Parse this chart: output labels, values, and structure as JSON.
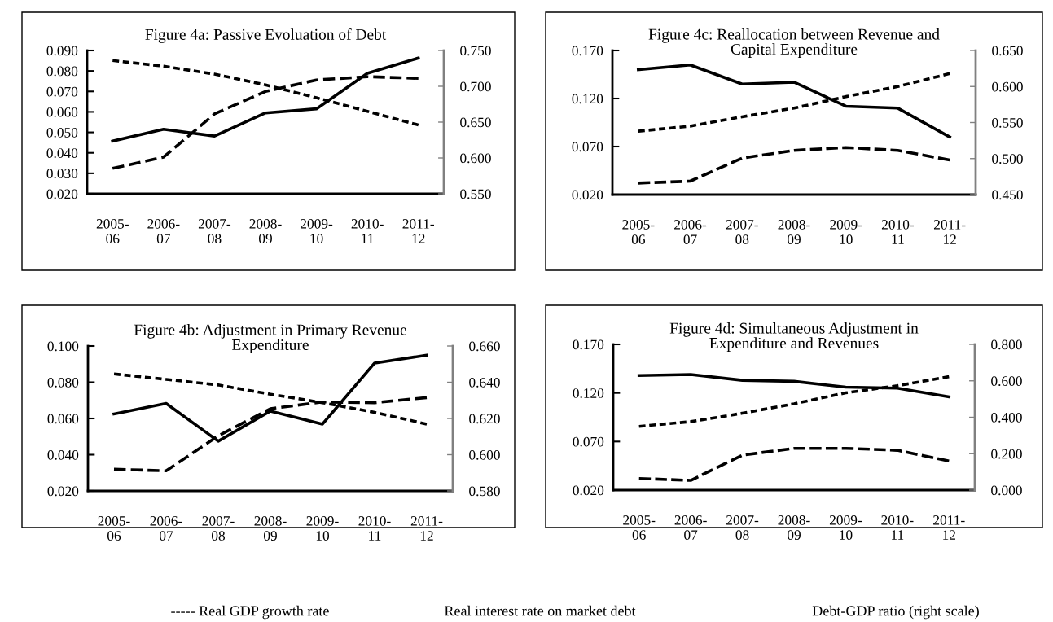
{
  "chart_data": [
    {
      "type": "line",
      "title": "Figure 4a: Passive Evoluation of Debt",
      "categories": [
        "2005-\n06",
        "2006-\n07",
        "2007-\n08",
        "2008-\n09",
        "2009-\n10",
        "2010-\n11",
        "2011-\n12"
      ],
      "series": [
        {
          "color": "#000000",
          "line_style": "solid",
          "values": [
            0.0457,
            0.0515,
            0.0482,
            0.0595,
            0.0615,
            0.0789,
            0.0863
          ]
        },
        {
          "color": "#000000",
          "line_style": "dashed",
          "values": [
            0.0324,
            0.0379,
            0.059,
            0.07,
            0.0756,
            0.0772,
            0.0764
          ]
        },
        {
          "color": "#000000",
          "line_style": "dotted",
          "axis": "y2",
          "values": [
            0.736,
            0.728,
            0.717,
            0.702,
            0.684,
            0.665,
            0.646
          ]
        }
      ],
      "ylim": [
        0.02,
        0.09
      ],
      "yticks": [
        {
          "value": 0.02,
          "label": "0.020"
        },
        {
          "value": 0.03,
          "label": "0.030"
        },
        {
          "value": 0.04,
          "label": "0.040"
        },
        {
          "value": 0.05,
          "label": "0.050"
        },
        {
          "value": 0.06,
          "label": "0.060"
        },
        {
          "value": 0.07,
          "label": "0.070"
        },
        {
          "value": 0.08,
          "label": "0.080"
        },
        {
          "value": 0.09,
          "label": "0.090"
        }
      ],
      "y2lim": [
        0.55,
        0.75
      ],
      "y2ticks": [
        {
          "value": 0.55,
          "label": "0.550"
        },
        {
          "value": 0.6,
          "label": "0.600"
        },
        {
          "value": 0.65,
          "label": "0.650"
        },
        {
          "value": 0.7,
          "label": "0.700"
        },
        {
          "value": 0.75,
          "label": "0.750"
        }
      ],
      "grid": false
    },
    {
      "type": "line",
      "title": "Figure 4c: Reallocation between Revenue and\nCapital Expenditure",
      "categories": [
        "2005-\n06",
        "2006-\n07",
        "2007-\n08",
        "2008-\n09",
        "2009-\n10",
        "2010-\n11",
        "2011-\n12"
      ],
      "series": [
        {
          "color": "#000000",
          "line_style": "solid",
          "values": [
            0.15,
            0.155,
            0.135,
            0.137,
            0.112,
            0.11,
            0.08
          ]
        },
        {
          "color": "#000000",
          "line_style": "dashed",
          "values": [
            0.032,
            0.034,
            0.058,
            0.066,
            0.069,
            0.066,
            0.056
          ]
        },
        {
          "color": "#000000",
          "line_style": "dotted",
          "axis": "y2",
          "values": [
            0.538,
            0.545,
            0.558,
            0.57,
            0.586,
            0.6,
            0.618
          ]
        }
      ],
      "ylim": [
        0.02,
        0.17
      ],
      "yticks": [
        {
          "value": 0.02,
          "label": "0.020"
        },
        {
          "value": 0.07,
          "label": "0.070"
        },
        {
          "value": 0.12,
          "label": "0.120"
        },
        {
          "value": 0.17,
          "label": "0.170"
        }
      ],
      "y2lim": [
        0.45,
        0.65
      ],
      "y2ticks": [
        {
          "value": 0.45,
          "label": "0.450"
        },
        {
          "value": 0.5,
          "label": "0.500"
        },
        {
          "value": 0.55,
          "label": "0.550"
        },
        {
          "value": 0.6,
          "label": "0.600"
        },
        {
          "value": 0.65,
          "label": "0.650"
        }
      ],
      "grid": false
    },
    {
      "type": "line",
      "title": "Figure 4b: Adjustment in Primary Revenue\nExpenditure",
      "categories": [
        "2005-\n06",
        "2006-\n07",
        "2007-\n08",
        "2008-\n09",
        "2009-\n10",
        "2010-\n11",
        "2011-\n12"
      ],
      "series": [
        {
          "color": "#000000",
          "line_style": "solid",
          "values": [
            0.0625,
            0.0683,
            0.0475,
            0.0641,
            0.0569,
            0.0906,
            0.0949
          ]
        },
        {
          "color": "#000000",
          "line_style": "dashed",
          "values": [
            0.032,
            0.0311,
            0.0504,
            0.0654,
            0.0691,
            0.0687,
            0.0715
          ]
        },
        {
          "color": "#000000",
          "line_style": "dotted",
          "axis": "y2",
          "values": [
            0.6446,
            0.6416,
            0.6385,
            0.6334,
            0.6287,
            0.6234,
            0.6169
          ]
        }
      ],
      "ylim": [
        0.02,
        0.1
      ],
      "yticks": [
        {
          "value": 0.02,
          "label": "0.020"
        },
        {
          "value": 0.04,
          "label": "0.040"
        },
        {
          "value": 0.06,
          "label": "0.060"
        },
        {
          "value": 0.08,
          "label": "0.080"
        },
        {
          "value": 0.1,
          "label": "0.100"
        }
      ],
      "y2lim": [
        0.58,
        0.66
      ],
      "y2ticks": [
        {
          "value": 0.58,
          "label": "0.580"
        },
        {
          "value": 0.6,
          "label": "0.600"
        },
        {
          "value": 0.62,
          "label": "0.620"
        },
        {
          "value": 0.64,
          "label": "0.640"
        },
        {
          "value": 0.66,
          "label": "0.660"
        }
      ],
      "grid": false
    },
    {
      "type": "line",
      "title": "Figure 4d: Simultaneous Adjustment in\nExpenditure and Revenues",
      "categories": [
        "2005-\n06",
        "2006-\n07",
        "2007-\n08",
        "2008-\n09",
        "2009-\n10",
        "2010-\n11",
        "2011-\n12"
      ],
      "series": [
        {
          "color": "#000000",
          "line_style": "solid",
          "values": [
            0.138,
            0.139,
            0.133,
            0.132,
            0.126,
            0.125,
            0.116
          ]
        },
        {
          "color": "#000000",
          "line_style": "dashed",
          "values": [
            0.032,
            0.03,
            0.056,
            0.063,
            0.063,
            0.061,
            0.05
          ]
        },
        {
          "color": "#000000",
          "line_style": "dotted",
          "axis": "y2",
          "values": [
            0.35,
            0.376,
            0.422,
            0.474,
            0.534,
            0.573,
            0.623
          ]
        }
      ],
      "ylim": [
        0.02,
        0.17
      ],
      "yticks": [
        {
          "value": 0.02,
          "label": "0.020"
        },
        {
          "value": 0.07,
          "label": "0.070"
        },
        {
          "value": 0.12,
          "label": "0.120"
        },
        {
          "value": 0.17,
          "label": "0.170"
        }
      ],
      "y2lim": [
        0.0,
        0.8
      ],
      "y2ticks": [
        {
          "value": 0.0,
          "label": "0.000"
        },
        {
          "value": 0.2,
          "label": "0.200"
        },
        {
          "value": 0.4,
          "label": "0.400"
        },
        {
          "value": 0.6,
          "label": "0.600"
        },
        {
          "value": 0.8,
          "label": "0.800"
        }
      ],
      "grid": false,
      "annotations": [
        "----- Real GDP growth rate",
        "Real interest rate on market debt",
        "Debt-GDP ratio (right scale)"
      ]
    }
  ]
}
